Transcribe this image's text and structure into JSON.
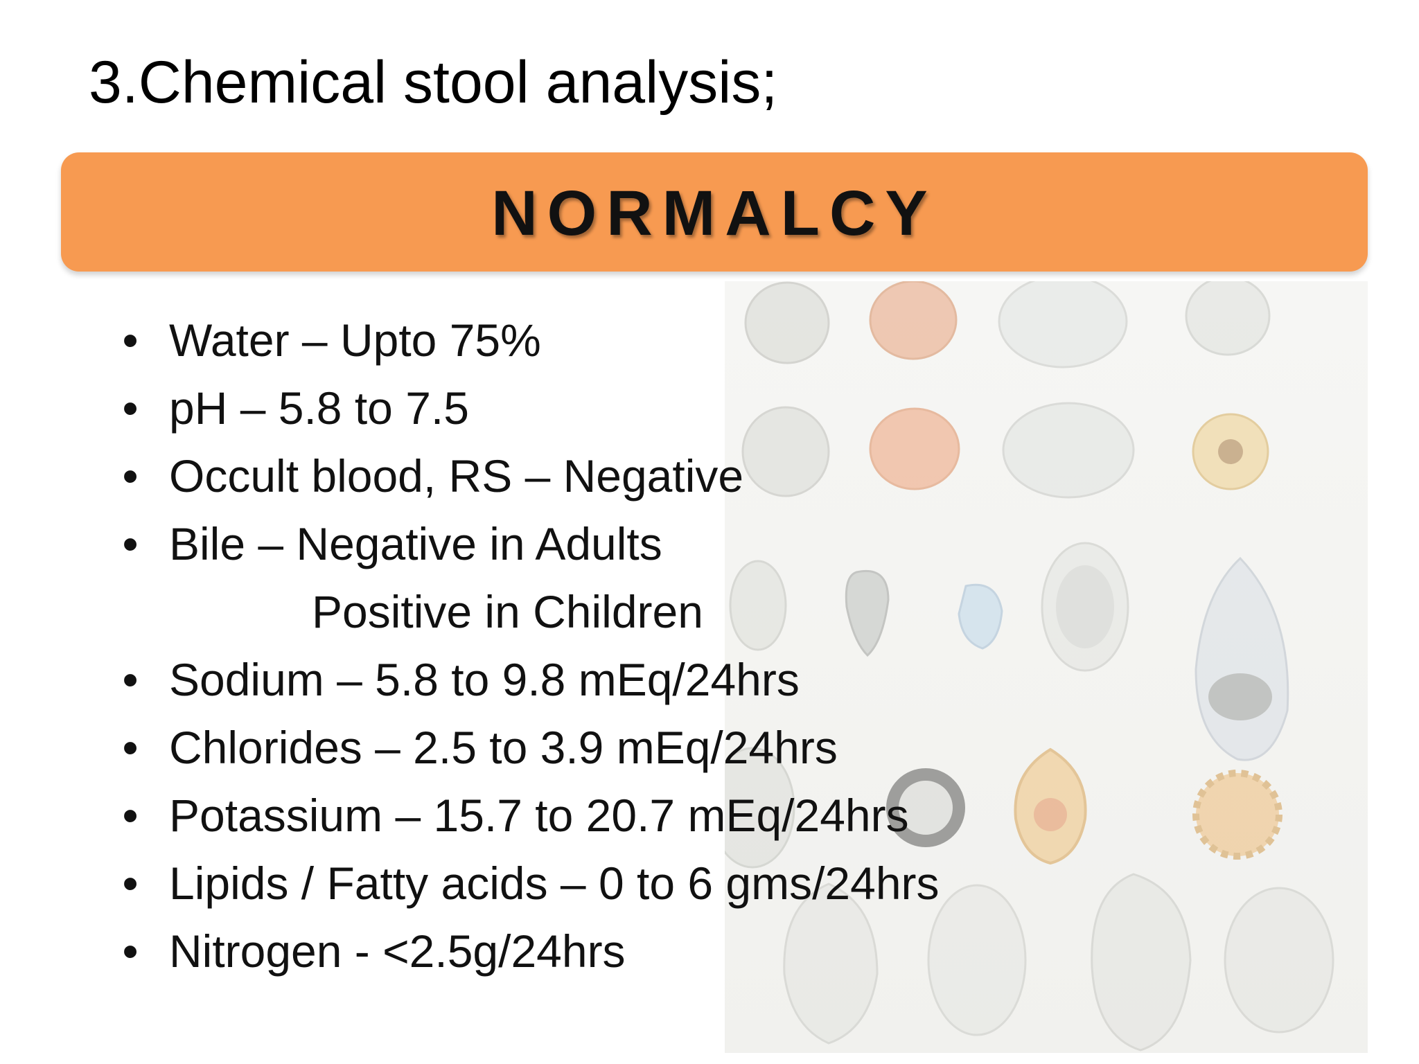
{
  "slide": {
    "title": "3.Chemical stool analysis;"
  },
  "image": {
    "header": "NORMALCY",
    "bullet_glyph": "•",
    "items": [
      {
        "text": "Water – Upto 75%"
      },
      {
        "text": "pH – 5.8 to 7.5"
      },
      {
        "text": "Occult blood, RS – Negative"
      },
      {
        "text": "Bile – Negative in Adults"
      },
      {
        "text": "Positive in Children",
        "continuation": true
      },
      {
        "text": "Sodium – 5.8 to 9.8 mEq/24hrs"
      },
      {
        "text": "Chlorides – 2.5 to 3.9 mEq/24hrs"
      },
      {
        "text": "Potassium – 15.7 to 20.7 mEq/24hrs"
      },
      {
        "text": "Lipids / Fatty acids – 0 to 6 gms/24hrs"
      },
      {
        "text": "Nitrogen - <2.5g/24hrs"
      }
    ],
    "background": "faded illustration of parasite cysts and ova"
  },
  "colors": {
    "header_band": "#F79A51",
    "text": "#111111",
    "background": "#ffffff"
  }
}
